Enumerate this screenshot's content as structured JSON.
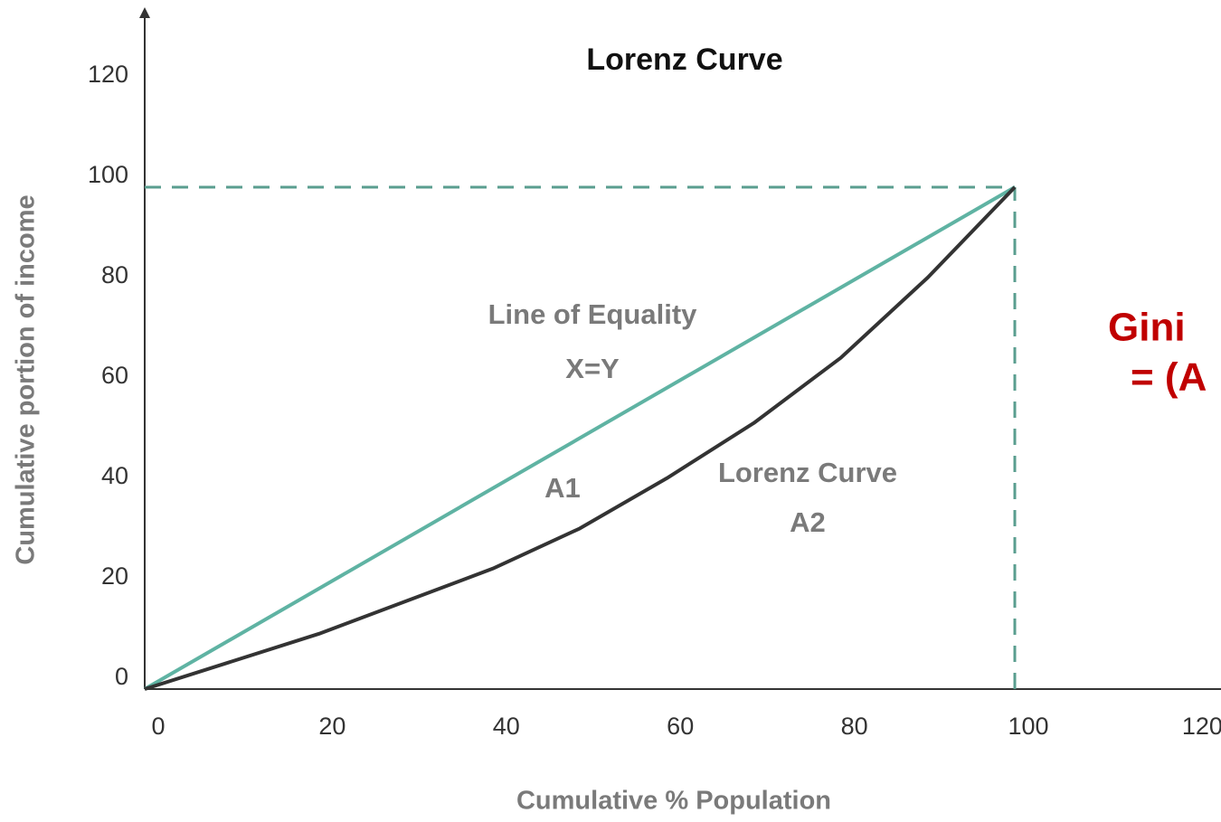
{
  "chart_data": {
    "type": "line",
    "title": "Lorenz Curve",
    "x_label": "Cumulative % Population",
    "y_label": "Cumulative portion of income",
    "annotations": [
      "Line of Equality",
      "X=Y",
      "A1",
      "Lorenz Curve",
      "A2",
      "Gini",
      "= (A"
    ],
    "xlim": [
      0,
      120
    ],
    "ylim": [
      0,
      120
    ],
    "xticks": [
      0,
      20,
      40,
      60,
      80,
      100,
      120
    ],
    "yticks": [
      0,
      20,
      40,
      60,
      80,
      100,
      120
    ],
    "reference_lines": [
      {
        "axis": "y",
        "value": 100,
        "color": "#5a9e8f"
      },
      {
        "axis": "x",
        "value": 100,
        "color": "#5a9e8f"
      }
    ],
    "series": [
      {
        "color": "#5fb3a3",
        "x": [
          0,
          100
        ],
        "values": [
          0,
          100
        ]
      },
      {
        "color": "#333333",
        "x": [
          0,
          20,
          40,
          50,
          60,
          70,
          80,
          90,
          100
        ],
        "values": [
          0,
          11,
          24,
          32,
          42,
          53,
          66,
          82,
          100
        ]
      }
    ]
  }
}
